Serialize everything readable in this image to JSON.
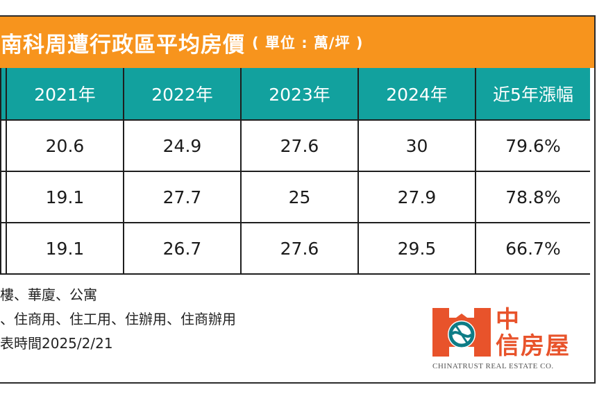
{
  "title": {
    "main": "南科周遭行政區平均房價",
    "unit": "( 單位 : 萬/坪 )"
  },
  "table": {
    "headers": [
      "",
      "2021年",
      "2022年",
      "2023年",
      "2024年",
      "近5年漲幅"
    ],
    "rows": [
      [
        "",
        "20.6",
        "24.9",
        "27.6",
        "30",
        "79.6%"
      ],
      [
        "",
        "19.1",
        "27.7",
        "25",
        "27.9",
        "78.8%"
      ],
      [
        "",
        "19.1",
        "26.7",
        "27.6",
        "29.5",
        "66.7%"
      ]
    ]
  },
  "notes": [
    "樓、華廈、公寓",
    "、住商用、住工用、住辦用、住商辦用",
    "表時間2025/2/21"
  ],
  "logo": {
    "name_line1": "中",
    "name_line2": "信房屋",
    "subtitle": "CHINATRUST REAL ESTATE CO.",
    "brand_color": "#e8532b",
    "mark_color": "#0e7c86"
  },
  "colors": {
    "title_bar": "#f7941d",
    "header_fill": "#12a19e",
    "border": "#1e1e1e"
  }
}
